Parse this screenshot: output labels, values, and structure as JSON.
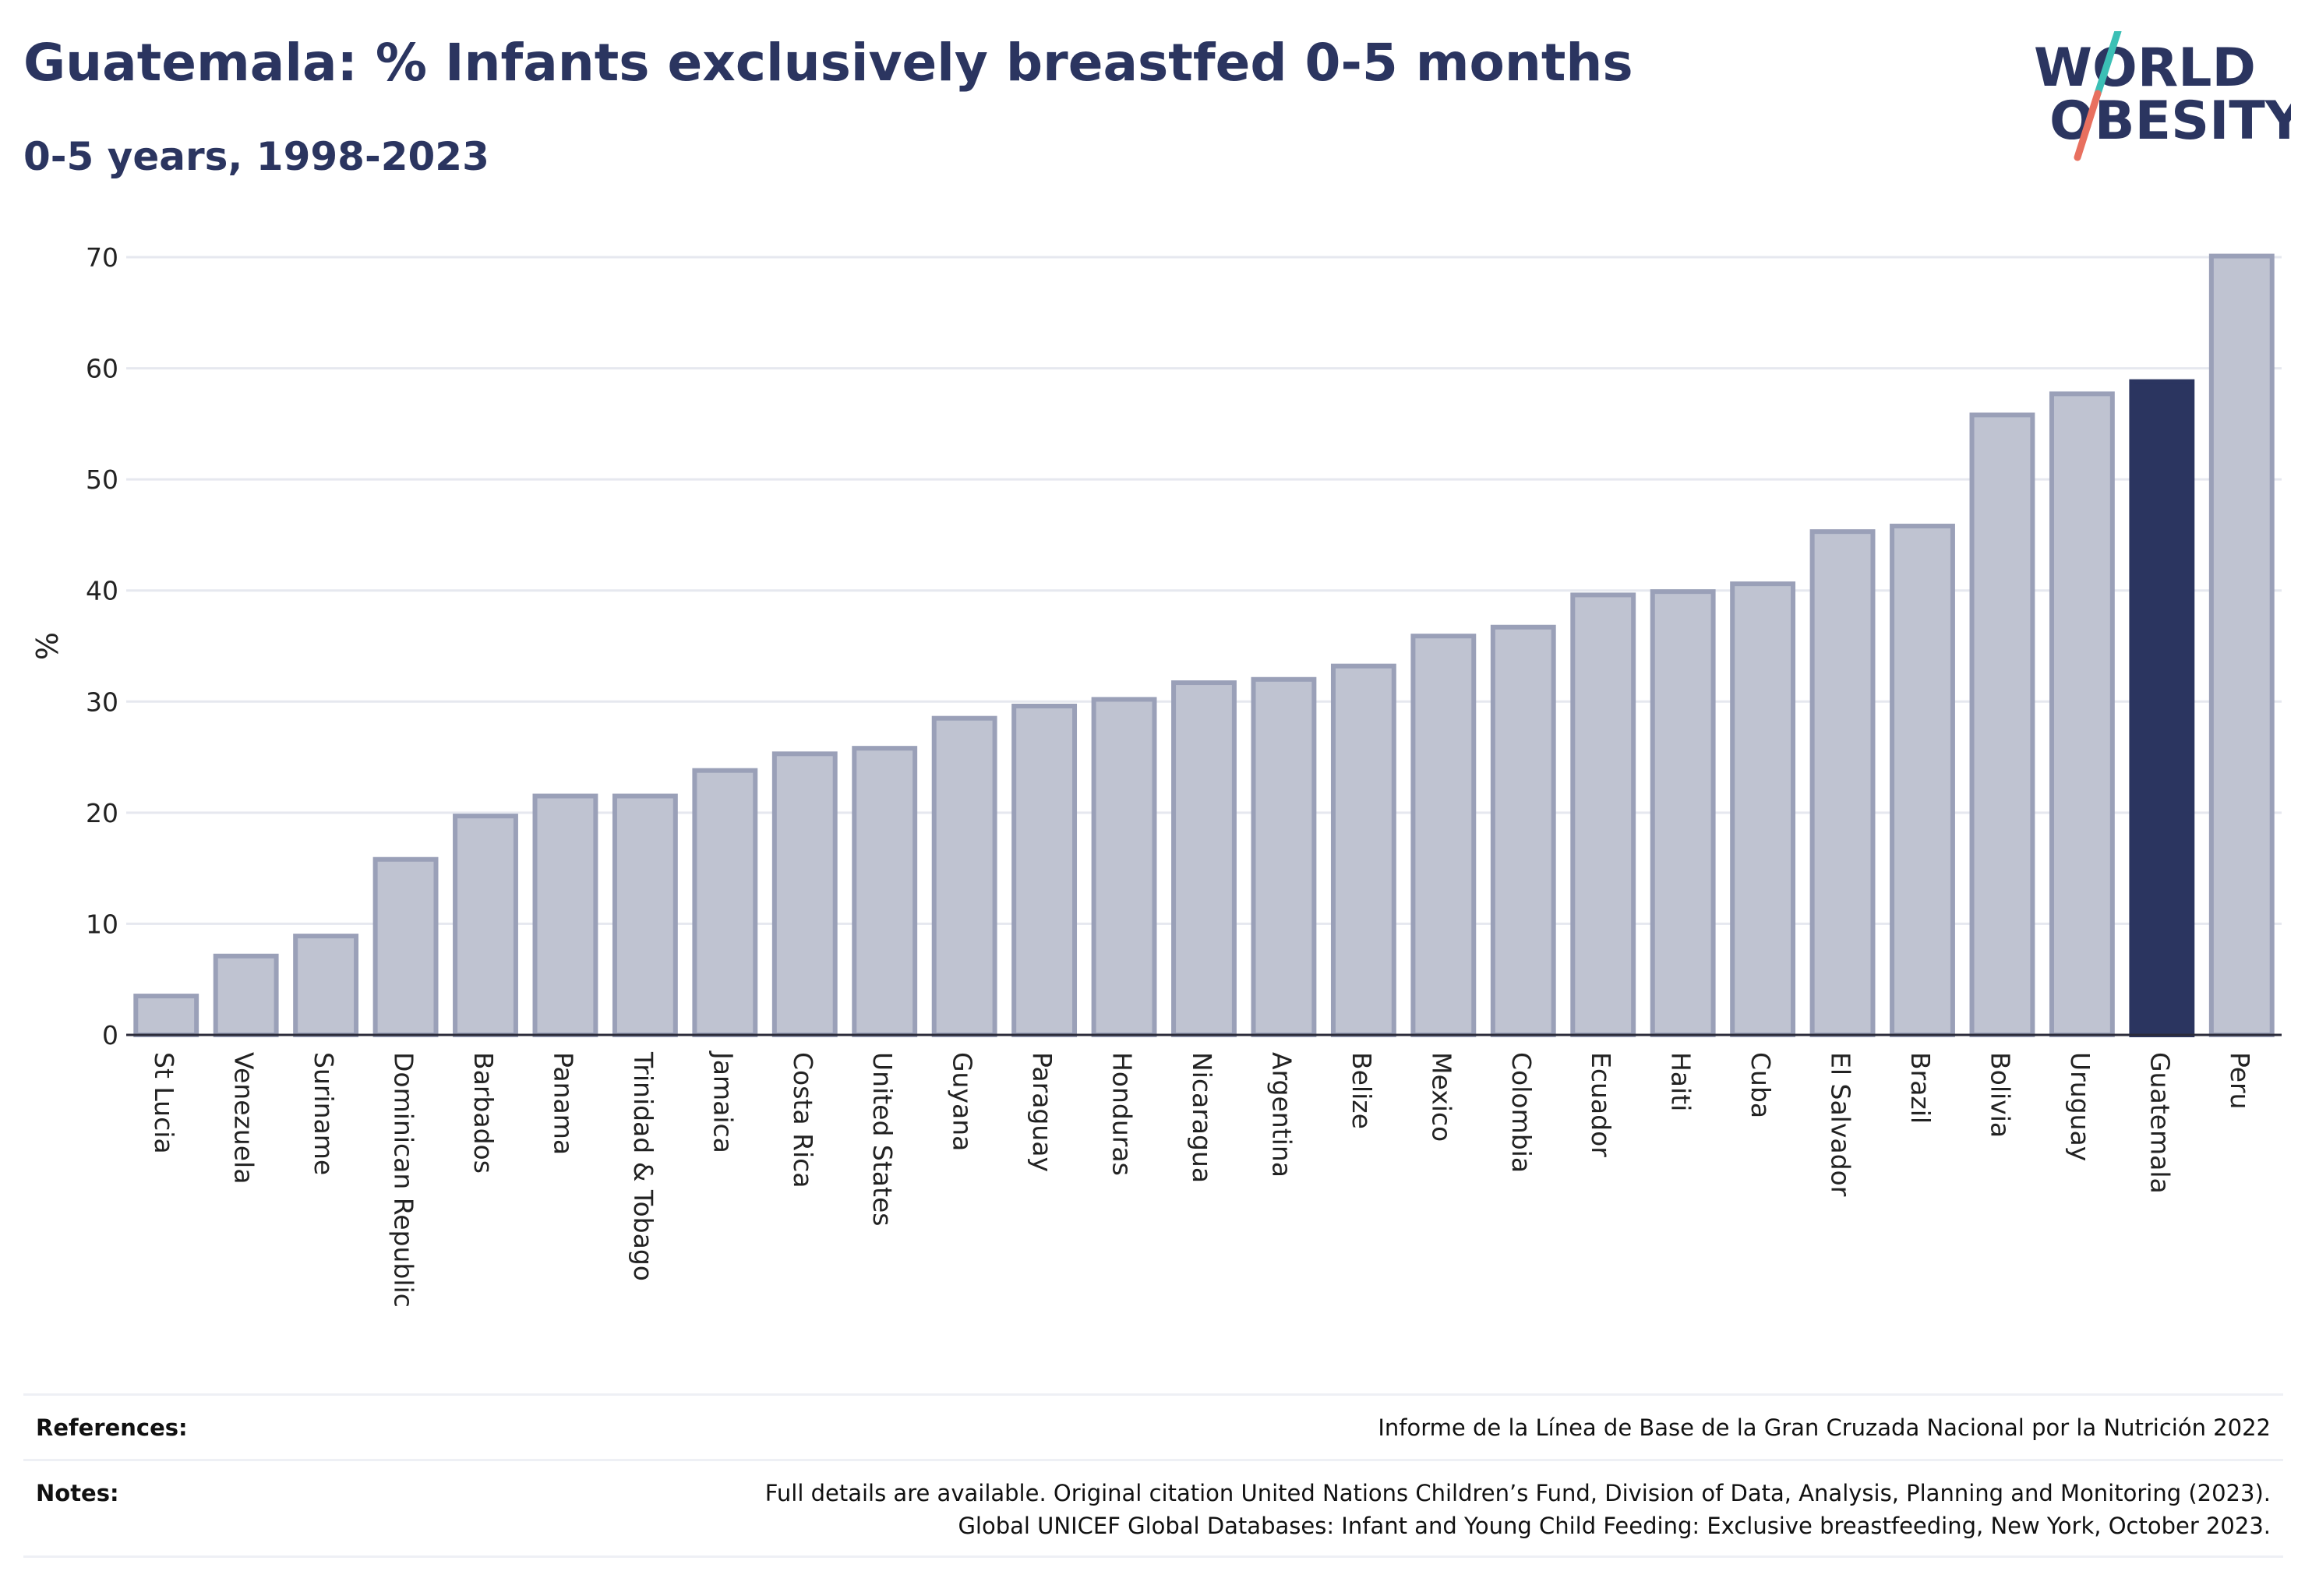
{
  "header": {
    "title": "Guatemala: % Infants exclusively breastfed 0-5 months",
    "subtitle": "0-5 years, 1998-2023"
  },
  "logo": {
    "line1": "WORLD",
    "line2": "OBESITY",
    "slash_colors": [
      "#3bbfb5",
      "#e8705f"
    ]
  },
  "colors": {
    "bar_default": "#bfc3d1",
    "bar_default_border": "#9aa0b8",
    "bar_highlight": "#2b3560",
    "title": "#2b3560"
  },
  "chart_data": {
    "type": "bar",
    "ylabel": "%",
    "ylim": [
      0,
      70
    ],
    "yticks": [
      0,
      10,
      20,
      30,
      40,
      50,
      60,
      70
    ],
    "grid": true,
    "highlight": "Guatemala",
    "categories": [
      "St Lucia",
      "Venezuela",
      "Suriname",
      "Dominican Republic",
      "Barbados",
      "Panama",
      "Trinidad & Tobago",
      "Jamaica",
      "Costa Rica",
      "United States",
      "Guyana",
      "Paraguay",
      "Honduras",
      "Nicaragua",
      "Argentina",
      "Belize",
      "Mexico",
      "Colombia",
      "Ecuador",
      "Haiti",
      "Cuba",
      "El Salvador",
      "Brazil",
      "Bolivia",
      "Uruguay",
      "Guatemala",
      "Peru"
    ],
    "values": [
      3.5,
      7.1,
      8.9,
      15.8,
      19.7,
      21.5,
      21.5,
      23.8,
      25.3,
      25.8,
      28.5,
      29.6,
      30.2,
      31.7,
      32.0,
      33.2,
      35.9,
      36.7,
      39.6,
      39.9,
      40.6,
      45.3,
      45.8,
      55.8,
      57.7,
      58.8,
      70.1
    ]
  },
  "footer": {
    "references_label": "References:",
    "references_text": "Informe de la Línea de Base de la Gran Cruzada Nacional por la Nutrición 2022",
    "notes_label": "Notes:",
    "notes_line1": "Full details are available. Original citation United Nations Children’s Fund, Division of Data, Analysis, Planning and Monitoring (2023).",
    "notes_line2": "Global UNICEF Global Databases: Infant and Young Child Feeding: Exclusive breastfeeding, New York, October 2023."
  }
}
